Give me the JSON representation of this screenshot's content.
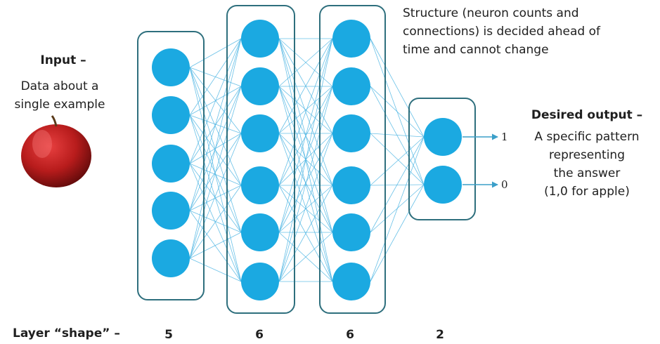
{
  "input": {
    "title": "Input –",
    "description_line1": "Data about a",
    "description_line2": "single example"
  },
  "structure_note": {
    "line1": "Structure (neuron counts and",
    "line2": "connections) is decided ahead of",
    "line3": "time and cannot change"
  },
  "output": {
    "title": "Desired output –",
    "line1": "A specific pattern",
    "line2": "representing",
    "line3": "the answer",
    "line4": "(1,0 for apple)",
    "values": [
      "1",
      "0"
    ]
  },
  "layer_shape": {
    "label": "Layer “shape” –",
    "sizes": [
      "5",
      "6",
      "6",
      "2"
    ]
  },
  "layers": [
    5,
    6,
    6,
    2
  ],
  "colors": {
    "neuron": "#1ba9e1",
    "connection": "#4fb6e3",
    "box_border": "#2e6f7d",
    "apple": "#b81c1c"
  }
}
